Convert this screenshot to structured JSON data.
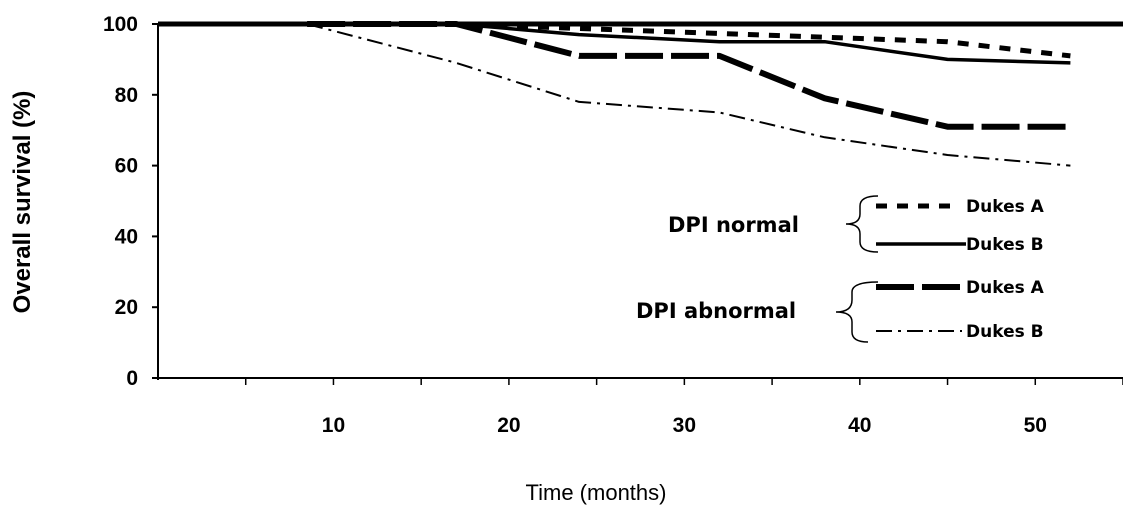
{
  "chart_data": {
    "type": "line",
    "xlabel": "Time (months)",
    "ylabel": "Overall survival (%)",
    "xlim": [
      0,
      55
    ],
    "ylim": [
      0,
      100
    ],
    "x_ticks": [
      "10",
      "20",
      "30",
      "40",
      "50"
    ],
    "y_ticks": [
      "0",
      "20",
      "40",
      "60",
      "80",
      "100"
    ],
    "grid": false,
    "legend": {
      "placement": "center-right",
      "groups": [
        {
          "label": "DPI normal",
          "entries": [
            "Dukes A",
            "Dukes B"
          ]
        },
        {
          "label": "DPI abnormal",
          "entries": [
            "Dukes A",
            "Dukes B"
          ]
        }
      ]
    },
    "series": [
      {
        "group": "DPI normal",
        "entry": "Dukes A",
        "style": "dotted",
        "points": [
          [
            8.5,
            100
          ],
          [
            17,
            100
          ],
          [
            45,
            95
          ],
          [
            52,
            91
          ]
        ]
      },
      {
        "group": "DPI normal",
        "entry": "Dukes B",
        "style": "solid",
        "points": [
          [
            8.5,
            100
          ],
          [
            17,
            100
          ],
          [
            24,
            97
          ],
          [
            32,
            95
          ],
          [
            38,
            95
          ],
          [
            45,
            90
          ],
          [
            52,
            89
          ]
        ]
      },
      {
        "group": "DPI abnormal",
        "entry": "Dukes A",
        "style": "thick-dashed",
        "points": [
          [
            8.5,
            100
          ],
          [
            17,
            100
          ],
          [
            24,
            91
          ],
          [
            32,
            91
          ],
          [
            38,
            79
          ],
          [
            45,
            71
          ],
          [
            52,
            71
          ]
        ]
      },
      {
        "group": "DPI abnormal",
        "entry": "Dukes B",
        "style": "dash-dot",
        "points": [
          [
            8.5,
            100
          ],
          [
            17,
            89
          ],
          [
            24,
            78
          ],
          [
            32,
            75
          ],
          [
            38,
            68
          ],
          [
            45,
            63
          ],
          [
            52,
            60
          ]
        ]
      }
    ]
  }
}
